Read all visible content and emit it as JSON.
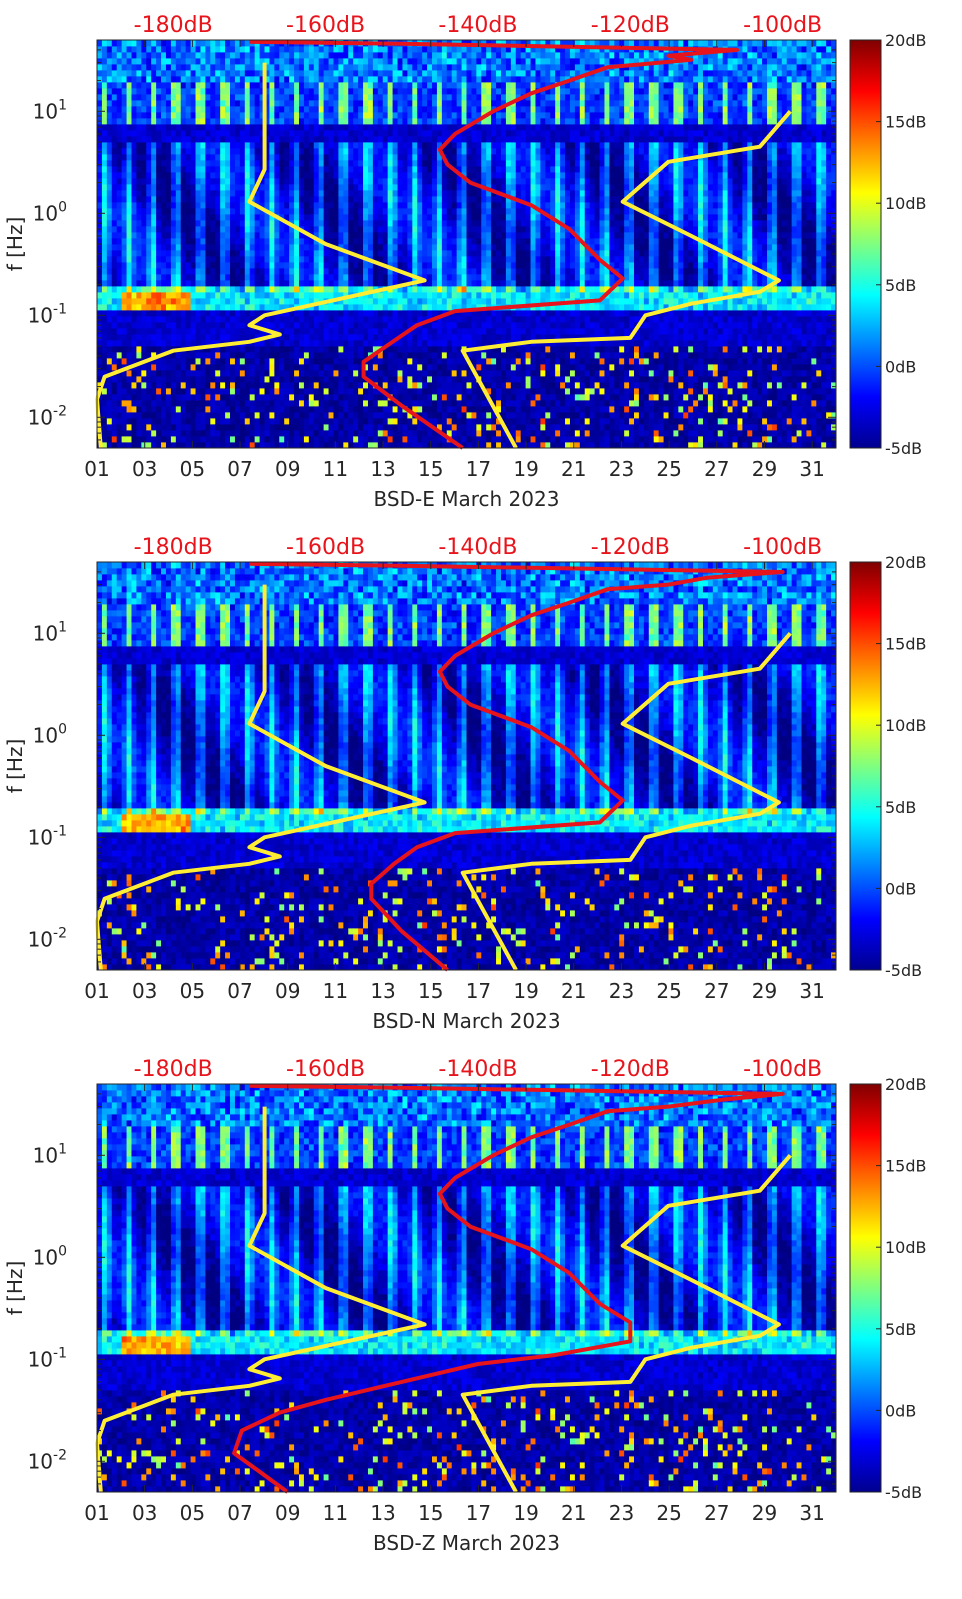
{
  "chart_data": [
    {
      "type": "heatmap",
      "xlabel": "BSD-E March 2023",
      "ylabel": "f [Hz]",
      "x_ticks": [
        "01",
        "03",
        "05",
        "07",
        "09",
        "11",
        "13",
        "15",
        "17",
        "19",
        "21",
        "23",
        "25",
        "27",
        "29",
        "31"
      ],
      "x_tick_days": [
        1,
        3,
        5,
        7,
        9,
        11,
        13,
        15,
        17,
        19,
        21,
        23,
        25,
        27,
        29,
        31
      ],
      "xlim": [
        1,
        32
      ],
      "y_scale": "log",
      "ylim": [
        0.005,
        50
      ],
      "y_ticks": [
        {
          "value": 0.01,
          "base": "10",
          "exp": "-2"
        },
        {
          "value": 0.1,
          "base": "10",
          "exp": "-1"
        },
        {
          "value": 1,
          "base": "10",
          "exp": "0"
        },
        {
          "value": 10,
          "base": "10",
          "exp": "1"
        }
      ],
      "top_axis_ticks": [
        "-180dB",
        "-160dB",
        "-140dB",
        "-120dB",
        "-100dB"
      ],
      "top_axis_values": [
        -180,
        -160,
        -140,
        -120,
        -100
      ],
      "top_axis_range": [
        -190,
        -93
      ],
      "colorbar_ticks": [
        "20dB",
        "15dB",
        "10dB",
        "5dB",
        "0dB",
        "-5dB"
      ],
      "colorbar_values": [
        20,
        15,
        10,
        5,
        0,
        -5
      ],
      "colorbar_range": [
        -5,
        20
      ],
      "colormap": "jet",
      "series": [
        {
          "color": "#ffee33",
          "points": [
            [
              -189.5,
              0.005
            ],
            [
              -190,
              0.015
            ],
            [
              -189,
              0.025
            ],
            [
              -180,
              0.045
            ],
            [
              -170,
              0.055
            ],
            [
              -166,
              0.065
            ],
            [
              -170,
              0.08
            ],
            [
              -168,
              0.1
            ],
            [
              -147,
              0.22
            ],
            [
              -160,
              0.5
            ],
            [
              -170,
              1.3
            ],
            [
              -168,
              2.7
            ],
            [
              -168,
              10
            ],
            [
              -168,
              20
            ],
            [
              -168,
              30
            ]
          ]
        },
        {
          "color": "#ffee33",
          "points": [
            [
              -135,
              0.005
            ],
            [
              -142,
              0.045
            ],
            [
              -133,
              0.055
            ],
            [
              -120,
              0.06
            ],
            [
              -118,
              0.1
            ],
            [
              -112,
              0.13
            ],
            [
              -103,
              0.17
            ],
            [
              -100.5,
              0.22
            ],
            [
              -112,
              0.6
            ],
            [
              -121,
              1.3
            ],
            [
              -115,
              3.2
            ],
            [
              -103,
              4.5
            ],
            [
              -99,
              10
            ]
          ]
        },
        {
          "color": "#e8141c",
          "points": [
            [
              -142,
              0.005
            ],
            [
              -150,
              0.013
            ],
            [
              -155,
              0.025
            ],
            [
              -155,
              0.035
            ],
            [
              -152,
              0.05
            ],
            [
              -148,
              0.08
            ],
            [
              -143,
              0.11
            ],
            [
              -124,
              0.14
            ],
            [
              -121,
              0.23
            ],
            [
              -124,
              0.35
            ],
            [
              -128,
              0.7
            ],
            [
              -133,
              1.2
            ],
            [
              -141,
              2.0
            ],
            [
              -144,
              3.0
            ],
            [
              -145,
              4.2
            ],
            [
              -143,
              6
            ],
            [
              -138,
              10
            ],
            [
              -133,
              15
            ],
            [
              -128,
              20
            ],
            [
              -123,
              27
            ],
            [
              -112,
              32
            ],
            [
              -115,
              35
            ],
            [
              -106,
              40
            ],
            [
              -150,
              46
            ],
            [
              -170,
              48
            ]
          ]
        }
      ]
    },
    {
      "type": "heatmap",
      "xlabel": "BSD-N March 2023",
      "ylabel": "f [Hz]",
      "x_ticks": [
        "01",
        "03",
        "05",
        "07",
        "09",
        "11",
        "13",
        "15",
        "17",
        "19",
        "21",
        "23",
        "25",
        "27",
        "29",
        "31"
      ],
      "x_tick_days": [
        1,
        3,
        5,
        7,
        9,
        11,
        13,
        15,
        17,
        19,
        21,
        23,
        25,
        27,
        29,
        31
      ],
      "xlim": [
        1,
        32
      ],
      "y_scale": "log",
      "ylim": [
        0.005,
        50
      ],
      "y_ticks": [
        {
          "value": 0.01,
          "base": "10",
          "exp": "-2"
        },
        {
          "value": 0.1,
          "base": "10",
          "exp": "-1"
        },
        {
          "value": 1,
          "base": "10",
          "exp": "0"
        },
        {
          "value": 10,
          "base": "10",
          "exp": "1"
        }
      ],
      "top_axis_ticks": [
        "-180dB",
        "-160dB",
        "-140dB",
        "-120dB",
        "-100dB"
      ],
      "top_axis_values": [
        -180,
        -160,
        -140,
        -120,
        -100
      ],
      "top_axis_range": [
        -190,
        -93
      ],
      "colorbar_ticks": [
        "20dB",
        "15dB",
        "10dB",
        "5dB",
        "0dB",
        "-5dB"
      ],
      "colorbar_values": [
        20,
        15,
        10,
        5,
        0,
        -5
      ],
      "colorbar_range": [
        -5,
        20
      ],
      "colormap": "jet",
      "series": [
        {
          "color": "#ffee33",
          "points": [
            [
              -189.5,
              0.005
            ],
            [
              -190,
              0.015
            ],
            [
              -189,
              0.025
            ],
            [
              -180,
              0.045
            ],
            [
              -170,
              0.055
            ],
            [
              -166,
              0.065
            ],
            [
              -170,
              0.08
            ],
            [
              -168,
              0.1
            ],
            [
              -147,
              0.22
            ],
            [
              -160,
              0.5
            ],
            [
              -170,
              1.3
            ],
            [
              -168,
              2.7
            ],
            [
              -168,
              10
            ],
            [
              -168,
              20
            ],
            [
              -168,
              30
            ]
          ]
        },
        {
          "color": "#ffee33",
          "points": [
            [
              -135,
              0.005
            ],
            [
              -142,
              0.045
            ],
            [
              -133,
              0.055
            ],
            [
              -120,
              0.06
            ],
            [
              -118,
              0.1
            ],
            [
              -112,
              0.13
            ],
            [
              -103,
              0.17
            ],
            [
              -100.5,
              0.22
            ],
            [
              -112,
              0.6
            ],
            [
              -121,
              1.3
            ],
            [
              -115,
              3.2
            ],
            [
              -103,
              4.5
            ],
            [
              -99,
              10
            ]
          ]
        },
        {
          "color": "#e8141c",
          "points": [
            [
              -144,
              0.005
            ],
            [
              -150,
              0.012
            ],
            [
              -154,
              0.025
            ],
            [
              -154,
              0.035
            ],
            [
              -151,
              0.055
            ],
            [
              -148,
              0.08
            ],
            [
              -143,
              0.11
            ],
            [
              -124,
              0.14
            ],
            [
              -121,
              0.23
            ],
            [
              -124,
              0.35
            ],
            [
              -128,
              0.7
            ],
            [
              -133,
              1.2
            ],
            [
              -141,
              2.0
            ],
            [
              -144,
              3.0
            ],
            [
              -145,
              4.2
            ],
            [
              -143,
              6
            ],
            [
              -138,
              10
            ],
            [
              -133,
              15
            ],
            [
              -128,
              20
            ],
            [
              -123,
              27
            ],
            [
              -115,
              30
            ],
            [
              -110,
              35
            ],
            [
              -100,
              40
            ],
            [
              -150,
              46
            ],
            [
              -170,
              48
            ]
          ]
        }
      ]
    },
    {
      "type": "heatmap",
      "xlabel": "BSD-Z March 2023",
      "ylabel": "f [Hz]",
      "x_ticks": [
        "01",
        "03",
        "05",
        "07",
        "09",
        "11",
        "13",
        "15",
        "17",
        "19",
        "21",
        "23",
        "25",
        "27",
        "29",
        "31"
      ],
      "x_tick_days": [
        1,
        3,
        5,
        7,
        9,
        11,
        13,
        15,
        17,
        19,
        21,
        23,
        25,
        27,
        29,
        31
      ],
      "xlim": [
        1,
        32
      ],
      "y_scale": "log",
      "ylim": [
        0.005,
        50
      ],
      "y_ticks": [
        {
          "value": 0.01,
          "base": "10",
          "exp": "-2"
        },
        {
          "value": 0.1,
          "base": "10",
          "exp": "-1"
        },
        {
          "value": 1,
          "base": "10",
          "exp": "0"
        },
        {
          "value": 10,
          "base": "10",
          "exp": "1"
        }
      ],
      "top_axis_ticks": [
        "-180dB",
        "-160dB",
        "-140dB",
        "-120dB",
        "-100dB"
      ],
      "top_axis_values": [
        -180,
        -160,
        -140,
        -120,
        -100
      ],
      "top_axis_range": [
        -190,
        -93
      ],
      "colorbar_ticks": [
        "20dB",
        "15dB",
        "10dB",
        "5dB",
        "0dB",
        "-5dB"
      ],
      "colorbar_values": [
        20,
        15,
        10,
        5,
        0,
        -5
      ],
      "colorbar_range": [
        -5,
        20
      ],
      "colormap": "jet",
      "series": [
        {
          "color": "#ffee33",
          "points": [
            [
              -189.5,
              0.005
            ],
            [
              -190,
              0.015
            ],
            [
              -189,
              0.025
            ],
            [
              -180,
              0.045
            ],
            [
              -170,
              0.055
            ],
            [
              -166,
              0.065
            ],
            [
              -170,
              0.08
            ],
            [
              -168,
              0.1
            ],
            [
              -147,
              0.22
            ],
            [
              -160,
              0.5
            ],
            [
              -170,
              1.3
            ],
            [
              -168,
              2.7
            ],
            [
              -168,
              10
            ],
            [
              -168,
              20
            ],
            [
              -168,
              30
            ]
          ]
        },
        {
          "color": "#ffee33",
          "points": [
            [
              -135,
              0.005
            ],
            [
              -142,
              0.045
            ],
            [
              -133,
              0.055
            ],
            [
              -120,
              0.06
            ],
            [
              -118,
              0.1
            ],
            [
              -112,
              0.13
            ],
            [
              -103,
              0.17
            ],
            [
              -100.5,
              0.22
            ],
            [
              -112,
              0.6
            ],
            [
              -121,
              1.3
            ],
            [
              -115,
              3.2
            ],
            [
              -103,
              4.5
            ],
            [
              -99,
              10
            ]
          ]
        },
        {
          "color": "#e8141c",
          "points": [
            [
              -165,
              0.005
            ],
            [
              -172,
              0.012
            ],
            [
              -171,
              0.02
            ],
            [
              -166,
              0.03
            ],
            [
              -160,
              0.04
            ],
            [
              -150,
              0.06
            ],
            [
              -140,
              0.09
            ],
            [
              -130,
              0.11
            ],
            [
              -120,
              0.15
            ],
            [
              -120,
              0.23
            ],
            [
              -124,
              0.35
            ],
            [
              -128,
              0.7
            ],
            [
              -133,
              1.2
            ],
            [
              -141,
              2.0
            ],
            [
              -144,
              3.0
            ],
            [
              -145,
              4.2
            ],
            [
              -143,
              6
            ],
            [
              -138,
              10
            ],
            [
              -133,
              15
            ],
            [
              -128,
              20
            ],
            [
              -123,
              27
            ],
            [
              -115,
              30
            ],
            [
              -108,
              35
            ],
            [
              -100,
              40
            ],
            [
              -150,
              46
            ],
            [
              -170,
              48
            ]
          ]
        }
      ]
    }
  ]
}
